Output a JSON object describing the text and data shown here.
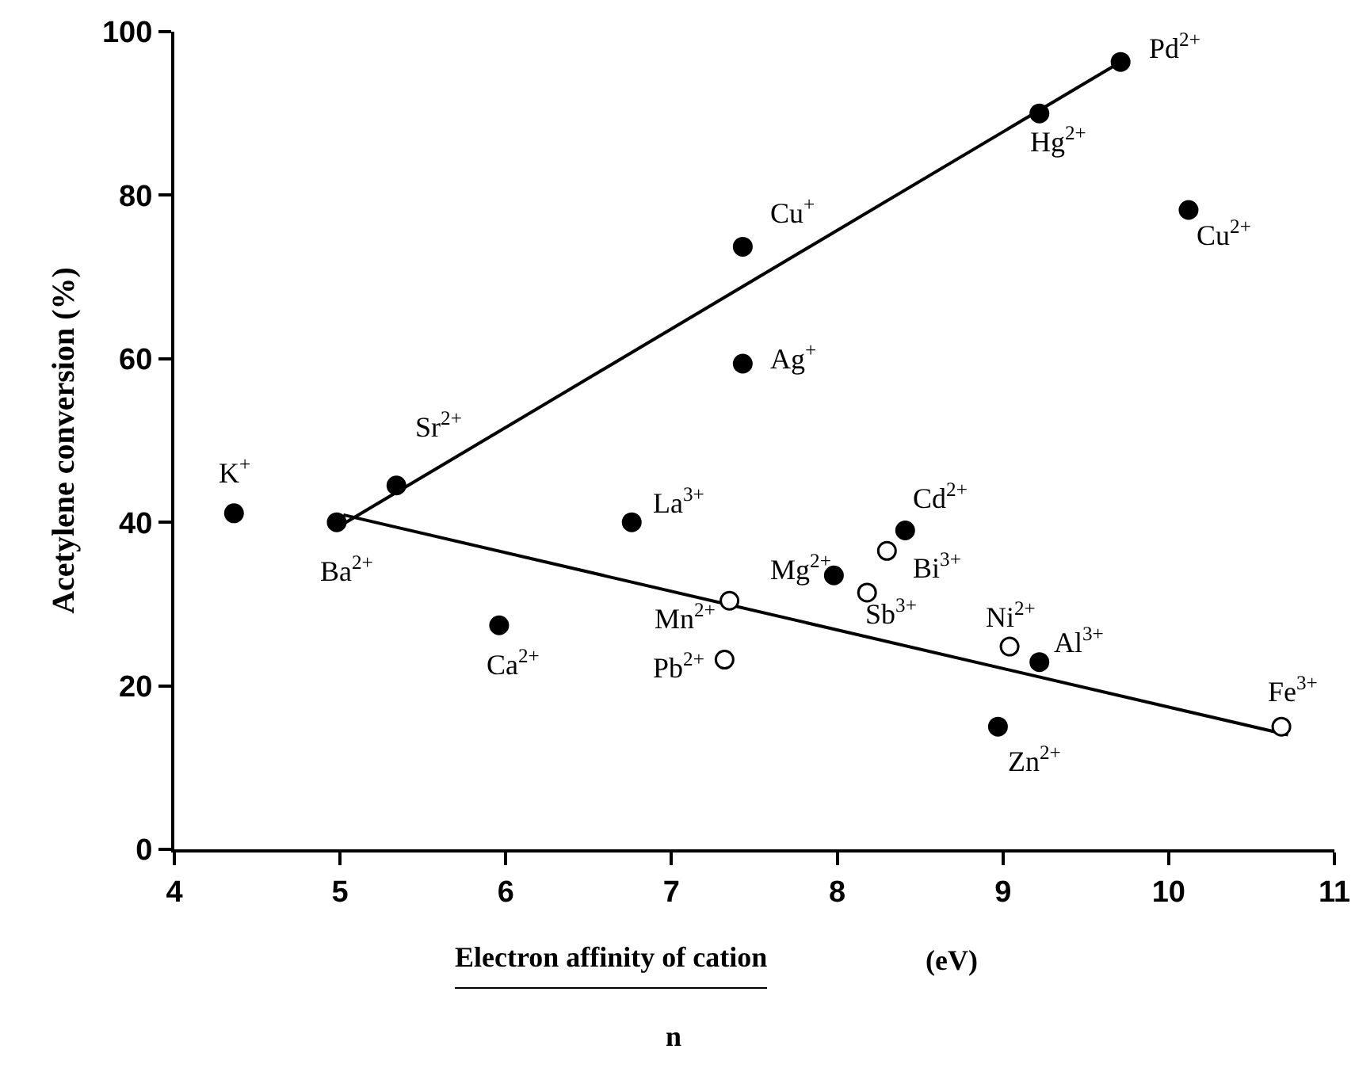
{
  "chart_data": {
    "type": "scatter",
    "ylabel": "Acetylene conversion (%)",
    "xlabel": "Electron affinity of cation",
    "xlim": [
      4,
      11
    ],
    "xticks": [
      4,
      5,
      6,
      7,
      8,
      9,
      10,
      11
    ],
    "ylim": [
      0,
      100
    ],
    "yticks": [
      0,
      20,
      40,
      60,
      80,
      100
    ],
    "grid": false,
    "marker": "circle",
    "series": [
      {
        "color": "#000000",
        "x": [
          4.36,
          4.98,
          5.34,
          5.96,
          6.76,
          7.43,
          7.43,
          7.98,
          8.41,
          8.97,
          9.22,
          9.22,
          9.71,
          10.12
        ],
        "values": [
          41.1,
          40,
          44.5,
          27.4,
          40,
          73.7,
          59.4,
          33.5,
          39,
          15,
          22.9,
          90,
          96.3,
          78.2
        ]
      },
      {
        "color": "#ffffff",
        "x": [
          7.35,
          7.32,
          8.18,
          8.3,
          9.04,
          10.68
        ],
        "values": [
          30.4,
          23.2,
          31.4,
          36.5,
          24.8,
          15
        ]
      },
      {
        "type": "line",
        "marker": "none",
        "color": "#000000",
        "x": [
          5.02,
          9.71
        ],
        "values": [
          39.8,
          96.3
        ]
      },
      {
        "type": "line",
        "marker": "none",
        "color": "#000000",
        "x": [
          5.02,
          10.72
        ],
        "values": [
          40.9,
          14
        ]
      }
    ],
    "annotations": [
      "(eV)",
      "n",
      {
        "text": "K$^{+}$",
        "x": 4.36,
        "y": 41.1
      },
      {
        "text": "Ba$^{2+}$",
        "x": 4.98,
        "y": 40
      },
      {
        "text": "Sr$^{2+}$",
        "x": 5.34,
        "y": 44.5
      },
      {
        "text": "Ca$^{2+}$",
        "x": 5.96,
        "y": 27.4
      },
      {
        "text": "La$^{3+}$",
        "x": 6.76,
        "y": 40
      },
      {
        "text": "Mn$^{2+}$",
        "x": 7.35,
        "y": 30.4
      },
      {
        "text": "Pb$^{2+}$",
        "x": 7.32,
        "y": 23.2
      },
      {
        "text": "Cu$^{+}$",
        "x": 7.43,
        "y": 73.7
      },
      {
        "text": "Ag$^{+}$",
        "x": 7.43,
        "y": 59.4
      },
      {
        "text": "Pd$^{2+}$",
        "x": 9.71,
        "y": 96.3
      },
      {
        "text": "Hg$^{2+}$",
        "x": 9.22,
        "y": 90
      },
      {
        "text": "Cu$^{2+}$",
        "x": 10.12,
        "y": 78.2
      },
      {
        "text": "Cd$^{2+}$",
        "x": 8.41,
        "y": 39
      },
      {
        "text": "Bi$^{3+}$",
        "x": 8.3,
        "y": 36.5
      },
      {
        "text": "Mg$^{2+}$",
        "x": 7.98,
        "y": 33.5
      },
      {
        "text": "Sb$^{3+}$",
        "x": 8.18,
        "y": 31.4
      },
      {
        "text": "Ni$^{2+}$",
        "x": 9.04,
        "y": 24.8
      },
      {
        "text": "Al$^{3+}$",
        "x": 9.22,
        "y": 22.9
      },
      {
        "text": "Zn$^{2+}$",
        "x": 8.97,
        "y": 15
      },
      {
        "text": "Fe$^{3+}$",
        "x": 10.68,
        "y": 15
      }
    ]
  }
}
